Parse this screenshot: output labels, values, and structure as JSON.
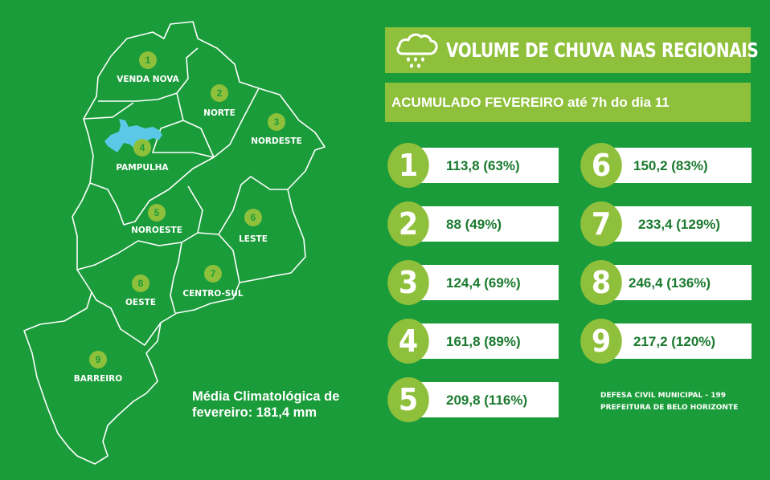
{
  "header": {
    "icon": "rain-cloud-icon",
    "title": "VOLUME DE CHUVA NAS REGIONAIS",
    "subtitle": "ACUMULADO FEVEREIRO até 7h do dia 11"
  },
  "colors": {
    "background": "#1a9c3a",
    "accent": "#8fc03b",
    "value_text": "#1a7a2e",
    "lake": "#5bc8e8"
  },
  "regions": [
    {
      "number": "1",
      "name": "VENDA NOVA"
    },
    {
      "number": "2",
      "name": "NORTE"
    },
    {
      "number": "3",
      "name": "NORDESTE"
    },
    {
      "number": "4",
      "name": "PAMPULHA"
    },
    {
      "number": "5",
      "name": "NOROESTE"
    },
    {
      "number": "6",
      "name": "LESTE"
    },
    {
      "number": "7",
      "name": "CENTRO-SUL"
    },
    {
      "number": "8",
      "name": "OESTE"
    },
    {
      "number": "9",
      "name": "BARREIRO"
    }
  ],
  "rainfall": [
    {
      "number": "1",
      "value": "113,8 (63%)"
    },
    {
      "number": "2",
      "value": "88 (49%)"
    },
    {
      "number": "3",
      "value": "124,4 (69%)"
    },
    {
      "number": "4",
      "value": "161,8 (89%)"
    },
    {
      "number": "5",
      "value": "209,8 (116%)"
    },
    {
      "number": "6",
      "value": "150,2 (83%)"
    },
    {
      "number": "7",
      "value": "233,4 (129%)"
    },
    {
      "number": "8",
      "value": "246,4 (136%)"
    },
    {
      "number": "9",
      "value": "217,2 (120%)"
    }
  ],
  "climatology": "Média Climatológica de\nfevereiro: 181,4 mm",
  "footer": {
    "line1": "DEFESA CIVIL MUNICIPAL -  199",
    "line2": "PREFEITURA DE BELO HORIZONTE"
  }
}
